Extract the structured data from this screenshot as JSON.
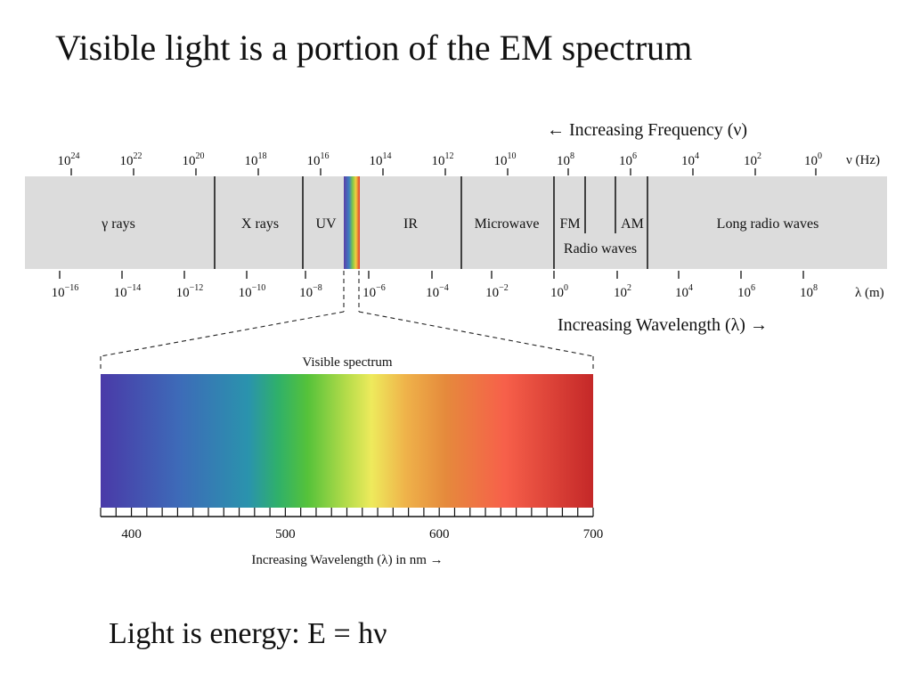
{
  "slide": {
    "title": "Visible light is a portion of the EM spectrum",
    "footer": "Light is energy:  E = hν"
  },
  "em_spectrum": {
    "frequency_arrow_label": "← Increasing Frequency (ν)",
    "frequency_unit": "ν (Hz)",
    "frequency_ticks": [
      {
        "base": "10",
        "exp": "24"
      },
      {
        "base": "10",
        "exp": "22"
      },
      {
        "base": "10",
        "exp": "20"
      },
      {
        "base": "10",
        "exp": "18"
      },
      {
        "base": "10",
        "exp": "16"
      },
      {
        "base": "10",
        "exp": "14"
      },
      {
        "base": "10",
        "exp": "12"
      },
      {
        "base": "10",
        "exp": "10"
      },
      {
        "base": "10",
        "exp": "8"
      },
      {
        "base": "10",
        "exp": "6"
      },
      {
        "base": "10",
        "exp": "4"
      },
      {
        "base": "10",
        "exp": "2"
      },
      {
        "base": "10",
        "exp": "0"
      }
    ],
    "wavelength_unit": "λ (m)",
    "wavelength_ticks": [
      {
        "base": "10",
        "exp": "−16"
      },
      {
        "base": "10",
        "exp": "−14"
      },
      {
        "base": "10",
        "exp": "−12"
      },
      {
        "base": "10",
        "exp": "−10"
      },
      {
        "base": "10",
        "exp": "−8"
      },
      {
        "base": "10",
        "exp": "−6"
      },
      {
        "base": "10",
        "exp": "−4"
      },
      {
        "base": "10",
        "exp": "−2"
      },
      {
        "base": "10",
        "exp": "0"
      },
      {
        "base": "10",
        "exp": "2"
      },
      {
        "base": "10",
        "exp": "4"
      },
      {
        "base": "10",
        "exp": "6"
      },
      {
        "base": "10",
        "exp": "8"
      }
    ],
    "wavelength_arrow_label": "Increasing Wavelength (λ) →",
    "regions": {
      "gamma": "γ rays",
      "xray": "X rays",
      "uv": "UV",
      "ir": "IR",
      "microwave": "Microwave",
      "fm": "FM",
      "am": "AM",
      "radio": "Radio waves",
      "long_radio": "Long radio waves"
    },
    "colors": {
      "band_fill": "#dcdcdc",
      "divider": "#1a1a1a"
    }
  },
  "visible_spectrum": {
    "title": "Visible spectrum",
    "axis_label": "Increasing Wavelength (λ) in nm →",
    "axis_min_nm": 380,
    "axis_max_nm": 700,
    "minor_tick_step_nm": 10,
    "tick_labels": [
      {
        "nm": 400,
        "label": "400"
      },
      {
        "nm": 500,
        "label": "500"
      },
      {
        "nm": 600,
        "label": "600"
      },
      {
        "nm": 700,
        "label": "700"
      }
    ],
    "gradient_stops": [
      {
        "offset": 0.0,
        "color": "#4a3aa8"
      },
      {
        "offset": 0.16,
        "color": "#3d6bb8"
      },
      {
        "offset": 0.3,
        "color": "#2a93ad"
      },
      {
        "offset": 0.36,
        "color": "#2fb06a"
      },
      {
        "offset": 0.42,
        "color": "#55c23a"
      },
      {
        "offset": 0.5,
        "color": "#b6dc4a"
      },
      {
        "offset": 0.55,
        "color": "#eeea5c"
      },
      {
        "offset": 0.62,
        "color": "#efb24a"
      },
      {
        "offset": 0.7,
        "color": "#e58a3c"
      },
      {
        "offset": 0.82,
        "color": "#f7604a"
      },
      {
        "offset": 1.0,
        "color": "#c42828"
      }
    ]
  }
}
